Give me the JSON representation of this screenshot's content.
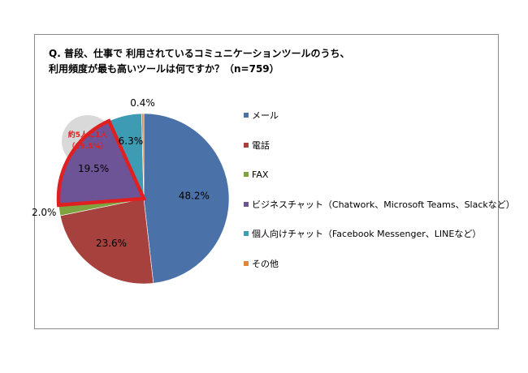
{
  "title_line1": "Q. 普段、仕事で 利用されているコミュニケーションツールのうち、",
  "title_line2": "利用頻度が最も高いツールは何ですか？（n=759）",
  "callout": {
    "line1": "約5人に1人",
    "line2": "（19.5%）",
    "color": "#e02020"
  },
  "chart_data": {
    "type": "pie",
    "title": "Q. 普段、仕事で 利用されているコミュニケーションツールのうち、利用頻度が最も高いツールは何ですか？（n=759）",
    "legend_position": "right",
    "categories": [
      "メール",
      "電話",
      "FAX",
      "ビジネスチャット（Chatwork、Microsoft Teams、Slackなど）",
      "個人向けチャット（Facebook Messenger、LINEなど）",
      "その他"
    ],
    "values": [
      48.2,
      23.6,
      2.0,
      19.5,
      6.3,
      0.4
    ],
    "data_labels": [
      "48.2%",
      "23.6%",
      "2.0%",
      "19.5%",
      "6.3%",
      "0.4%"
    ],
    "colors": [
      "#4a72a8",
      "#a6413e",
      "#7ea33f",
      "#6d5496",
      "#3d9bb4",
      "#e0883a"
    ],
    "highlighted_category": "ビジネスチャット（Chatwork、Microsoft Teams、Slackなど）",
    "highlight_color": "#e02020"
  }
}
